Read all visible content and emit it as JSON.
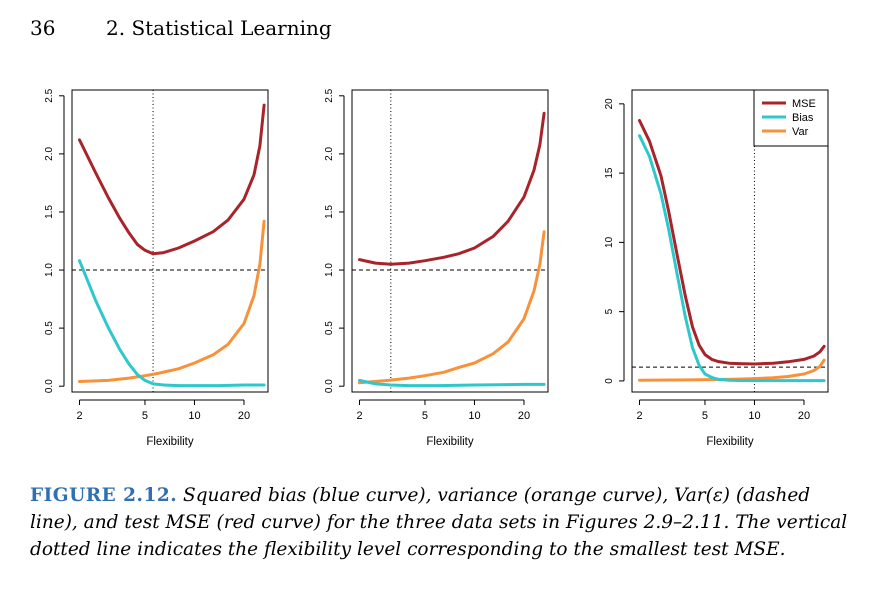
{
  "header": {
    "page_number": "36",
    "chapter_title": "2. Statistical Learning"
  },
  "caption": {
    "label": "FIGURE 2.12.",
    "text": "Squared bias (blue curve), variance (orange curve), Var(ε) (dashed line), and test MSE (red curve) for the three data sets in Figures 2.9–2.11. The vertical dotted line indicates the flexibility level corresponding to the smallest test MSE."
  },
  "colors": {
    "mse": "#a8242a",
    "bias": "#2ec8cc",
    "var": "#f7923a",
    "axis": "#000000"
  },
  "chart_data": [
    {
      "type": "line",
      "xlabel": "Flexibility",
      "xscale": "log",
      "xlim": [
        1.8,
        28
      ],
      "x_ticks": [
        2,
        5,
        10,
        20
      ],
      "ylim": [
        -0.05,
        2.55
      ],
      "y_ticks": [
        "0.0",
        "0.5",
        "1.0",
        "1.5",
        "2.0",
        "2.5"
      ],
      "hline": 1.0,
      "vline": 5.6,
      "series": [
        {
          "name": "MSE",
          "color_key": "mse",
          "x": [
            2,
            2.5,
            3,
            3.5,
            4,
            4.5,
            5,
            5.6,
            6.5,
            8,
            10,
            13,
            16,
            20,
            23,
            25,
            26.5
          ],
          "y": [
            2.12,
            1.84,
            1.62,
            1.45,
            1.32,
            1.22,
            1.17,
            1.14,
            1.15,
            1.19,
            1.25,
            1.33,
            1.43,
            1.61,
            1.82,
            2.07,
            2.42
          ]
        },
        {
          "name": "Bias",
          "color_key": "bias",
          "x": [
            2,
            2.5,
            3,
            3.5,
            4,
            4.5,
            5,
            5.6,
            6.5,
            8,
            10,
            14,
            20,
            26.5
          ],
          "y": [
            1.08,
            0.74,
            0.5,
            0.32,
            0.19,
            0.1,
            0.05,
            0.02,
            0.01,
            0.005,
            0.005,
            0.005,
            0.01,
            0.01
          ]
        },
        {
          "name": "Var",
          "color_key": "var",
          "x": [
            2,
            3,
            4,
            5,
            6,
            8,
            10,
            13,
            16,
            20,
            23,
            25,
            26.5
          ],
          "y": [
            0.04,
            0.05,
            0.07,
            0.09,
            0.11,
            0.15,
            0.2,
            0.27,
            0.36,
            0.54,
            0.78,
            1.05,
            1.42
          ]
        }
      ]
    },
    {
      "type": "line",
      "xlabel": "Flexibility",
      "xscale": "log",
      "xlim": [
        1.8,
        28
      ],
      "x_ticks": [
        2,
        5,
        10,
        20
      ],
      "ylim": [
        -0.05,
        2.55
      ],
      "y_ticks": [
        "0.0",
        "0.5",
        "1.0",
        "1.5",
        "2.0",
        "2.5"
      ],
      "hline": 1.0,
      "vline": 3.1,
      "series": [
        {
          "name": "MSE",
          "color_key": "mse",
          "x": [
            2,
            2.5,
            3.1,
            4,
            5,
            6.5,
            8,
            10,
            13,
            16,
            20,
            23,
            25,
            26.5
          ],
          "y": [
            1.09,
            1.06,
            1.05,
            1.06,
            1.08,
            1.11,
            1.14,
            1.19,
            1.29,
            1.42,
            1.63,
            1.86,
            2.08,
            2.35
          ]
        },
        {
          "name": "Bias",
          "color_key": "bias",
          "x": [
            2,
            2.5,
            3.1,
            4,
            6,
            10,
            20,
            26.5
          ],
          "y": [
            0.05,
            0.02,
            0.01,
            0.005,
            0.005,
            0.01,
            0.015,
            0.015
          ]
        },
        {
          "name": "Var",
          "color_key": "var",
          "x": [
            2,
            3,
            4,
            5,
            6.5,
            8,
            10,
            13,
            16,
            20,
            23,
            25,
            26.5
          ],
          "y": [
            0.03,
            0.05,
            0.07,
            0.09,
            0.12,
            0.16,
            0.2,
            0.28,
            0.38,
            0.58,
            0.82,
            1.05,
            1.33
          ]
        }
      ]
    },
    {
      "type": "line",
      "xlabel": "Flexibility",
      "xscale": "log",
      "xlim": [
        1.8,
        28
      ],
      "x_ticks": [
        2,
        5,
        10,
        20
      ],
      "ylim": [
        -0.8,
        21.0
      ],
      "y_ticks": [
        "0",
        "5",
        "10",
        "15",
        "20"
      ],
      "hline": 1.0,
      "vline": 10,
      "legend": {
        "position": "top-right",
        "entries": [
          "MSE",
          "Bias",
          "Var"
        ]
      },
      "series": [
        {
          "name": "MSE",
          "color_key": "mse",
          "x": [
            2,
            2.3,
            2.7,
            3,
            3.4,
            3.8,
            4.2,
            4.6,
            5,
            5.5,
            6,
            7,
            8,
            10,
            13,
            16,
            20,
            23,
            25,
            26.5
          ],
          "y": [
            18.8,
            17.3,
            14.8,
            12.3,
            9.0,
            6.1,
            3.9,
            2.6,
            1.9,
            1.55,
            1.4,
            1.28,
            1.25,
            1.22,
            1.28,
            1.38,
            1.55,
            1.8,
            2.1,
            2.5
          ]
        },
        {
          "name": "Bias",
          "color_key": "bias",
          "x": [
            2,
            2.3,
            2.7,
            3,
            3.4,
            3.8,
            4.2,
            4.6,
            5,
            5.5,
            6,
            7,
            8,
            10,
            13,
            20,
            26.5
          ],
          "y": [
            17.7,
            16.2,
            13.5,
            11.0,
            7.6,
            4.6,
            2.4,
            1.15,
            0.5,
            0.25,
            0.12,
            0.05,
            0.03,
            0.02,
            0.02,
            0.02,
            0.02
          ]
        },
        {
          "name": "Var",
          "color_key": "var",
          "x": [
            2,
            4,
            6,
            8,
            10,
            13,
            16,
            20,
            23,
            25,
            26.5
          ],
          "y": [
            0.05,
            0.07,
            0.1,
            0.13,
            0.17,
            0.23,
            0.32,
            0.5,
            0.75,
            1.05,
            1.5
          ]
        }
      ]
    }
  ]
}
